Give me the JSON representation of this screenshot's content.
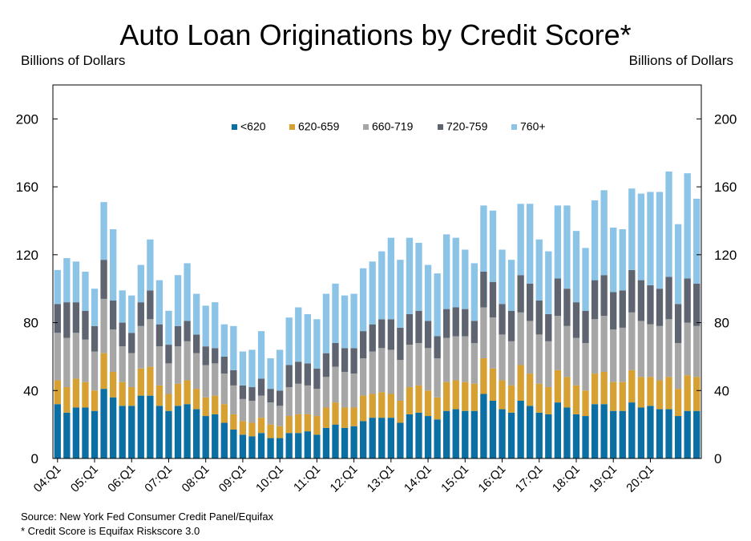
{
  "chart_data": {
    "type": "bar",
    "stacked": true,
    "title": "Auto Loan Originations by Credit Score*",
    "ylabel_left": "Billions of Dollars",
    "ylabel_right": "Billions of Dollars",
    "ylim": [
      0,
      220
    ],
    "yticks": [
      0,
      40,
      80,
      120,
      160,
      200
    ],
    "xtick_labels": [
      "04:Q1",
      "05:Q1",
      "06:Q1",
      "07:Q1",
      "08:Q1",
      "09:Q1",
      "10:Q1",
      "11:Q1",
      "12:Q1",
      "13:Q1",
      "14:Q1",
      "15:Q1",
      "16:Q1",
      "17:Q1",
      "18:Q1",
      "19:Q1",
      "20:Q1"
    ],
    "legend_position": "top-center",
    "grid": false,
    "colors": [
      "#0b6fa4",
      "#d6a032",
      "#a6a6a6",
      "#5e6470",
      "#8cc4e8"
    ],
    "series": [
      {
        "name": "<620",
        "values": [
          32,
          27,
          30,
          30,
          28,
          41,
          36,
          31,
          31,
          37,
          37,
          31,
          28,
          31,
          32,
          29,
          25,
          26,
          21,
          17,
          14,
          13,
          15,
          12,
          12,
          15,
          15,
          16,
          14,
          18,
          20,
          18,
          19,
          22,
          24,
          24,
          24,
          21,
          26,
          27,
          25,
          23,
          28,
          29,
          28,
          28,
          38,
          34,
          29,
          27,
          34,
          31,
          27,
          26,
          33,
          30,
          26,
          25,
          32,
          32,
          28,
          28,
          33,
          30,
          31,
          29,
          29,
          25,
          28,
          28
        ]
      },
      {
        "name": "620-659",
        "values": [
          14,
          15,
          17,
          15,
          12,
          21,
          15,
          14,
          11,
          16,
          17,
          12,
          10,
          13,
          14,
          12,
          11,
          11,
          11,
          9,
          8,
          8,
          9,
          8,
          7,
          10,
          11,
          10,
          11,
          12,
          13,
          12,
          11,
          15,
          14,
          15,
          14,
          13,
          16,
          16,
          15,
          13,
          17,
          17,
          17,
          16,
          21,
          19,
          17,
          16,
          21,
          19,
          17,
          16,
          19,
          18,
          17,
          15,
          18,
          19,
          17,
          17,
          19,
          18,
          17,
          17,
          19,
          16,
          21,
          20
        ]
      },
      {
        "name": "660-719",
        "values": [
          28,
          29,
          27,
          25,
          23,
          32,
          25,
          21,
          20,
          25,
          28,
          23,
          18,
          22,
          23,
          21,
          19,
          19,
          18,
          17,
          13,
          13,
          13,
          13,
          12,
          17,
          18,
          17,
          16,
          18,
          21,
          21,
          20,
          22,
          25,
          26,
          26,
          24,
          25,
          25,
          25,
          23,
          26,
          26,
          27,
          24,
          30,
          30,
          27,
          26,
          31,
          31,
          29,
          27,
          32,
          30,
          28,
          28,
          32,
          33,
          31,
          32,
          34,
          33,
          31,
          32,
          34,
          27,
          31,
          30
        ]
      },
      {
        "name": "720-759",
        "values": [
          17,
          21,
          18,
          17,
          15,
          23,
          17,
          14,
          12,
          14,
          17,
          13,
          11,
          12,
          12,
          11,
          11,
          9,
          10,
          9,
          8,
          8,
          10,
          8,
          9,
          13,
          13,
          13,
          12,
          14,
          14,
          14,
          15,
          16,
          16,
          17,
          18,
          19,
          18,
          19,
          16,
          13,
          17,
          17,
          16,
          13,
          21,
          21,
          18,
          18,
          22,
          22,
          20,
          16,
          22,
          22,
          21,
          19,
          23,
          24,
          22,
          22,
          25,
          24,
          23,
          22,
          25,
          23,
          26,
          25
        ]
      },
      {
        "name": "760+",
        "values": [
          20,
          26,
          24,
          23,
          22,
          34,
          42,
          19,
          22,
          22,
          30,
          26,
          20,
          30,
          34,
          24,
          24,
          27,
          19,
          26,
          20,
          22,
          28,
          18,
          24,
          28,
          32,
          29,
          29,
          35,
          35,
          31,
          32,
          37,
          37,
          40,
          48,
          40,
          45,
          40,
          33,
          37,
          44,
          41,
          35,
          34,
          39,
          42,
          32,
          30,
          42,
          47,
          36,
          37,
          43,
          49,
          42,
          37,
          47,
          50,
          38,
          36,
          48,
          51,
          55,
          57,
          62,
          47,
          62,
          50
        ]
      }
    ]
  }
}
